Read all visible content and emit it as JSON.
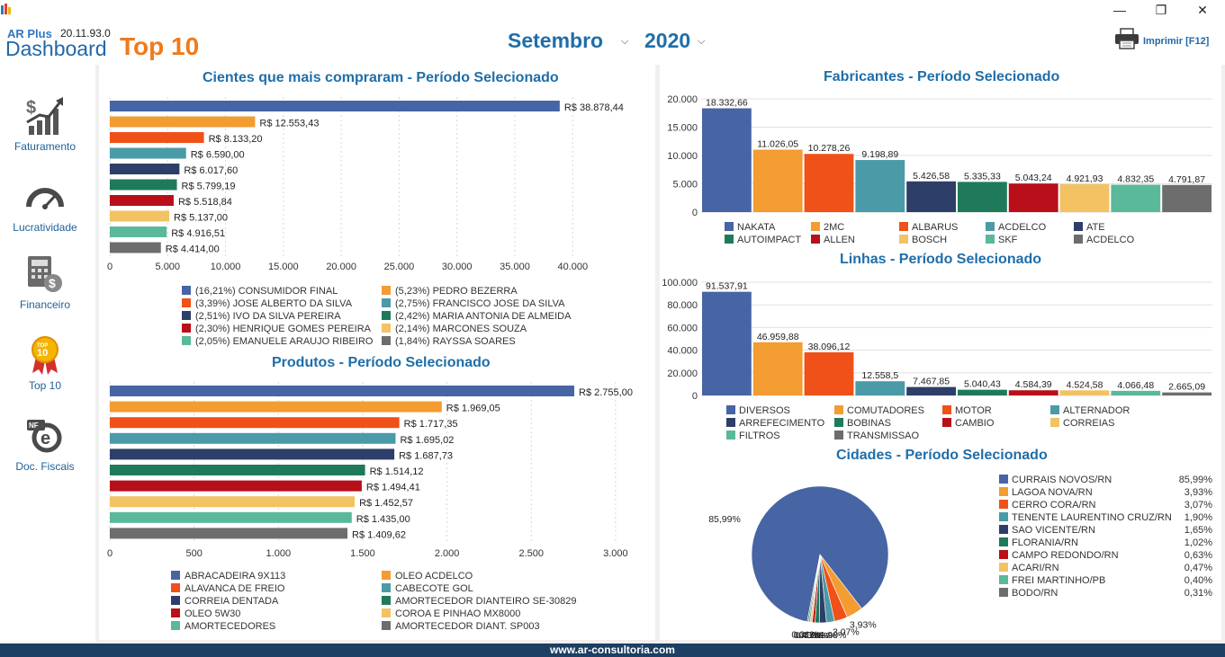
{
  "window": {
    "minimize": "—",
    "maximize": "❐",
    "close": "✕"
  },
  "header": {
    "brand_small": "AR Plus",
    "version": "20.11.93.0",
    "brand_dashboard": "Dashboard",
    "brand_top": "Top 10",
    "month": "Setembro",
    "year": "2020",
    "print_label": "Imprimir [F12]"
  },
  "sidebar": {
    "items": [
      {
        "label": "Faturamento",
        "icon": "chart-growth-icon"
      },
      {
        "label": "Lucratividade",
        "icon": "speedometer-icon"
      },
      {
        "label": "Financeiro",
        "icon": "calculator-icon"
      },
      {
        "label": "Top 10",
        "icon": "top10-medal-icon"
      },
      {
        "label": "Doc. Fiscais",
        "icon": "nfe-document-icon"
      }
    ]
  },
  "footer": {
    "text": "www.ar-consultoria.com"
  },
  "colors": [
    "#4764a4",
    "#f39c32",
    "#ef5118",
    "#4a9aa8",
    "#2d3f68",
    "#1f7a5c",
    "#b80f1a",
    "#f2c263",
    "#5ab89b",
    "#6d6d6d"
  ],
  "chart_data": [
    {
      "type": "bar",
      "orientation": "horizontal",
      "title": "Cientes que mais compraram - Período Selecionado",
      "categories": [
        "CONSUMIDOR FINAL",
        "PEDRO BEZERRA",
        "JOSE ALBERTO DA SILVA",
        "FRANCISCO JOSE DA SILVA",
        "IVO DA SILVA PEREIRA",
        "MARIA ANTONIA DE ALMEIDA",
        "HENRIQUE GOMES PEREIRA",
        "MARCONES SOUZA",
        "EMANUELE ARAUJO RIBEIRO",
        "RAYSSA SOARES"
      ],
      "values": [
        38878.44,
        12553.43,
        8133.2,
        6590.0,
        6017.6,
        5799.19,
        5518.84,
        5137.0,
        4916.51,
        4414.0
      ],
      "value_labels": [
        "R$ 38.878,44",
        "R$ 12.553,43",
        "R$ 8.133,20",
        "R$ 6.590,00",
        "R$ 6.017,60",
        "R$ 5.799,19",
        "R$ 5.518,84",
        "R$ 5.137,00",
        "R$ 4.916,51",
        "R$ 4.414,00"
      ],
      "legend": [
        "(16,21%) CONSUMIDOR FINAL",
        "(5,23%) PEDRO BEZERRA",
        "(3,39%) JOSE ALBERTO DA SILVA",
        "(2,75%) FRANCISCO JOSE DA SILVA",
        "(2,51%) IVO DA SILVA PEREIRA",
        "(2,42%) MARIA ANTONIA DE ALMEIDA",
        "(2,30%) HENRIQUE GOMES PEREIRA",
        "(2,14%) MARCONES SOUZA",
        "(2,05%) EMANUELE ARAUJO RIBEIRO",
        "(1,84%) RAYSSA SOARES"
      ],
      "xlim": [
        0,
        42000
      ],
      "ticks": [
        0,
        5000,
        10000,
        15000,
        20000,
        25000,
        30000,
        35000,
        40000
      ],
      "tick_labels": [
        "0",
        "5.000",
        "10.000",
        "15.000",
        "20.000",
        "25.000",
        "30.000",
        "35.000",
        "40.000"
      ],
      "legend_position": "bottom"
    },
    {
      "type": "bar",
      "orientation": "horizontal",
      "title": "Produtos - Período Selecionado",
      "categories": [
        "ABRACADEIRA 9X113",
        "OLEO ACDELCO",
        "ALAVANCA DE FREIO",
        "CABECOTE GOL",
        "CORREIA DENTADA",
        "AMORTECEDOR DIANTEIRO SE-30829",
        "OLEO 5W30",
        "COROA E PINHAO MX8000",
        "AMORTECEDORES",
        "AMORTECEDOR DIANT. SP003"
      ],
      "values": [
        2755.0,
        1969.05,
        1717.35,
        1695.02,
        1687.73,
        1514.12,
        1494.41,
        1452.57,
        1435.0,
        1409.62
      ],
      "value_labels": [
        "R$ 2.755,00",
        "R$ 1.969,05",
        "R$ 1.717,35",
        "R$ 1.695,02",
        "R$ 1.687,73",
        "R$ 1.514,12",
        "R$ 1.494,41",
        "R$ 1.452,57",
        "R$ 1.435,00",
        "R$ 1.409,62"
      ],
      "legend": [
        "ABRACADEIRA 9X113",
        "OLEO ACDELCO",
        "ALAVANCA DE FREIO",
        "CABECOTE GOL",
        "CORREIA DENTADA",
        "AMORTECEDOR DIANTEIRO SE-30829",
        "OLEO 5W30",
        "COROA E PINHAO MX8000",
        "AMORTECEDORES",
        "AMORTECEDOR DIANT. SP003"
      ],
      "xlim": [
        0,
        3150
      ],
      "ticks": [
        0,
        500,
        1000,
        1500,
        2000,
        2500,
        3000
      ],
      "tick_labels": [
        "0",
        "500",
        "1.000",
        "1.500",
        "2.000",
        "2.500",
        "3.000"
      ],
      "legend_position": "bottom"
    },
    {
      "type": "bar",
      "orientation": "vertical",
      "title": "Fabricantes - Período Selecionado",
      "categories": [
        "NAKATA",
        "2MC",
        "ALBARUS",
        "ACDELCO",
        "ATE",
        "AUTOIMPACT",
        "ALLEN",
        "BOSCH",
        "SKF",
        "ACDELCO"
      ],
      "values": [
        18332.66,
        11026.05,
        10278.26,
        9198.89,
        5426.58,
        5335.33,
        5043.24,
        4921.93,
        4832.35,
        4791.87
      ],
      "value_labels": [
        "18.332,66",
        "11.026,05",
        "10.278,26",
        "9.198,89",
        "5.426,58",
        "5.335,33",
        "5.043,24",
        "4.921,93",
        "4.832,35",
        "4.791,87"
      ],
      "ylim": [
        0,
        20000
      ],
      "ticks": [
        0,
        5000,
        10000,
        15000,
        20000
      ],
      "tick_labels": [
        "0",
        "5.000",
        "10.000",
        "15.000",
        "20.000"
      ],
      "legend_position": "bottom"
    },
    {
      "type": "bar",
      "orientation": "vertical",
      "title": "Linhas - Período Selecionado",
      "categories": [
        "DIVERSOS",
        "COMUTADORES",
        "MOTOR",
        "ALTERNADOR",
        "ARREFECIMENTO",
        "BOBINAS",
        "CAMBIO",
        "CORREIAS",
        "FILTROS",
        "TRANSMISSAO"
      ],
      "values": [
        91537.91,
        46959.88,
        38096.12,
        12558.5,
        7467.85,
        5040.43,
        4584.39,
        4524.58,
        4066.48,
        2665.09
      ],
      "value_labels": [
        "91.537,91",
        "46.959,88",
        "38.096,12",
        "12.558,5",
        "7.467,85",
        "5.040,43",
        "4.584,39",
        "4.524,58",
        "4.066,48",
        "2.665,09"
      ],
      "ylim": [
        0,
        100000
      ],
      "ticks": [
        0,
        20000,
        40000,
        60000,
        80000,
        100000
      ],
      "tick_labels": [
        "0",
        "20.000",
        "40.000",
        "60.000",
        "80.000",
        "100.000"
      ],
      "legend_position": "bottom"
    },
    {
      "type": "pie",
      "title": "Cidades - Período Selecionado",
      "categories": [
        "CURRAIS NOVOS/RN",
        "LAGOA NOVA/RN",
        "CERRO CORA/RN",
        "TENENTE LAURENTINO CRUZ/RN",
        "SAO VICENTE/RN",
        "FLORANIA/RN",
        "CAMPO REDONDO/RN",
        "ACARI/RN",
        "FREI MARTINHO/PB",
        "BODO/RN"
      ],
      "values": [
        85.99,
        3.93,
        3.07,
        1.9,
        1.65,
        1.02,
        0.63,
        0.47,
        0.4,
        0.31
      ],
      "value_labels": [
        "85,99%",
        "3,93%",
        "3,07%",
        "1,90%",
        "1,65%",
        "1,02%",
        "0,63%",
        "0,47%",
        "0,40%",
        "0,31%"
      ],
      "slice_labels": [
        "85,99%",
        "3,93%",
        "3,07%",
        "1,90%",
        "1,65%",
        "1,02%",
        "0,63%",
        "0,47%",
        "0,40%",
        "0,31%"
      ],
      "legend_position": "right"
    }
  ]
}
